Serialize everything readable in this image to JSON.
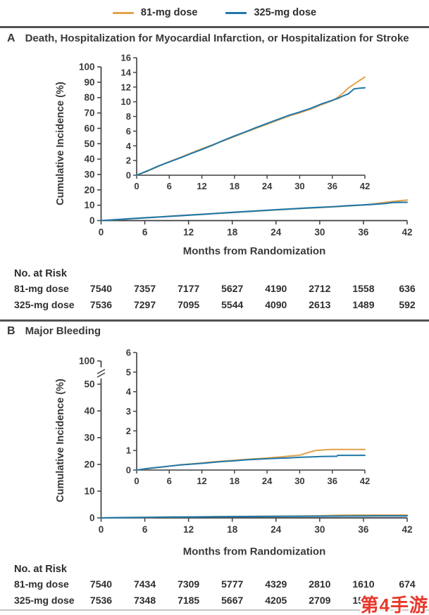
{
  "legend": {
    "items": [
      {
        "label": "81-mg dose",
        "color": "#E2A24A"
      },
      {
        "label": "325-mg dose",
        "color": "#1F77A9"
      }
    ]
  },
  "watermark": {
    "text": "第4手游",
    "color": "#E8392B"
  },
  "panels": [
    {
      "letter": "A",
      "title": "Death, Hospitalization for Myocardial Infarction, or Hospitalization for Stroke",
      "ylabel": "Cumulative Incidence (%)",
      "xlabel": "Months from Randomization",
      "risk": {
        "title": "No. at Risk",
        "rows": [
          {
            "label": "81-mg dose",
            "values": [
              "7540",
              "7357",
              "7177",
              "5627",
              "4190",
              "2712",
              "1558",
              "636"
            ]
          },
          {
            "label": "325-mg dose",
            "values": [
              "7536",
              "7297",
              "7095",
              "5544",
              "4090",
              "2613",
              "1489",
              "592"
            ]
          }
        ]
      }
    },
    {
      "letter": "B",
      "title": "Major Bleeding",
      "ylabel": "Cumulative Incidence (%)",
      "xlabel": "Months from Randomization",
      "risk": {
        "title": "No. at Risk",
        "rows": [
          {
            "label": "81-mg dose",
            "values": [
              "7540",
              "7434",
              "7309",
              "5777",
              "4329",
              "2810",
              "1610",
              "674"
            ]
          },
          {
            "label": "325-mg dose",
            "values": [
              "7536",
              "7348",
              "7185",
              "5667",
              "4205",
              "2709",
              "1559",
              ""
            ]
          }
        ]
      }
    }
  ],
  "chart_data": [
    {
      "type": "line",
      "title": "Death, Hospitalization for Myocardial Infarction, or Hospitalization for Stroke",
      "xlabel": "Months from Randomization",
      "ylabel": "Cumulative Incidence (%)",
      "xlim": [
        0,
        42
      ],
      "x_ticks": [
        0,
        6,
        12,
        18,
        24,
        30,
        36,
        42
      ],
      "main": {
        "ylim": [
          0,
          100
        ],
        "y_ticks": [
          0,
          10,
          20,
          30,
          40,
          50,
          60,
          70,
          80,
          90,
          100
        ],
        "y_break": false
      },
      "inset": {
        "ylim": [
          0,
          16
        ],
        "y_ticks": [
          0,
          2,
          4,
          6,
          8,
          10,
          12,
          14,
          16
        ]
      },
      "legend_position": "top",
      "grid": false,
      "series": [
        {
          "name": "81-mg dose",
          "color": "#E2A24A",
          "x": [
            0,
            2,
            4,
            6,
            8,
            10,
            12,
            14,
            16,
            18,
            20,
            22,
            24,
            26,
            28,
            30,
            32,
            34,
            36,
            37,
            38,
            39,
            40,
            41,
            42
          ],
          "y": [
            0,
            0.55,
            1.2,
            1.85,
            2.4,
            3.0,
            3.6,
            4.15,
            4.7,
            5.25,
            5.85,
            6.4,
            6.95,
            7.5,
            8.05,
            8.5,
            9.0,
            9.6,
            10.15,
            10.6,
            11.2,
            11.9,
            12.4,
            12.9,
            13.35
          ]
        },
        {
          "name": "325-mg dose",
          "color": "#1F77A9",
          "x": [
            0,
            2,
            4,
            6,
            8,
            10,
            12,
            14,
            16,
            18,
            20,
            22,
            24,
            26,
            28,
            30,
            32,
            34,
            36,
            37,
            38,
            39,
            40,
            41,
            42
          ],
          "y": [
            0,
            0.6,
            1.25,
            1.8,
            2.35,
            2.95,
            3.5,
            4.1,
            4.75,
            5.35,
            5.9,
            6.5,
            7.05,
            7.6,
            8.15,
            8.6,
            9.1,
            9.7,
            10.2,
            10.45,
            10.8,
            11.1,
            11.75,
            11.85,
            11.9
          ]
        }
      ]
    },
    {
      "type": "line",
      "title": "Major Bleeding",
      "xlabel": "Months from Randomization",
      "ylabel": "Cumulative Incidence (%)",
      "xlim": [
        0,
        42
      ],
      "x_ticks": [
        0,
        6,
        12,
        18,
        24,
        30,
        36,
        42
      ],
      "main": {
        "ylim": [
          0,
          100
        ],
        "y_ticks": [
          0,
          10,
          20,
          30,
          40,
          50
        ],
        "y_break": true,
        "y_break_upper_label": 100
      },
      "inset": {
        "ylim": [
          0,
          6
        ],
        "y_ticks": [
          0,
          1,
          2,
          3,
          4,
          5,
          6
        ]
      },
      "legend_position": "top",
      "grid": false,
      "series": [
        {
          "name": "81-mg dose",
          "color": "#E2A24A",
          "x": [
            0,
            2,
            4,
            6,
            8,
            10,
            12,
            14,
            16,
            18,
            20,
            22,
            24,
            26,
            28,
            30,
            30.5,
            31,
            31.5,
            32,
            32.5,
            33,
            34,
            35,
            36,
            42
          ],
          "y": [
            0,
            0.07,
            0.13,
            0.2,
            0.27,
            0.31,
            0.36,
            0.42,
            0.46,
            0.5,
            0.54,
            0.58,
            0.61,
            0.66,
            0.71,
            0.76,
            0.8,
            0.85,
            0.89,
            0.93,
            0.97,
            1.0,
            1.02,
            1.04,
            1.05,
            1.05
          ]
        },
        {
          "name": "325-mg dose",
          "color": "#1F77A9",
          "x": [
            0,
            2,
            4,
            6,
            8,
            10,
            12,
            14,
            16,
            18,
            20,
            22,
            24,
            26,
            28,
            30,
            32,
            34,
            36,
            36.8,
            37,
            42
          ],
          "y": [
            0,
            0.08,
            0.14,
            0.2,
            0.26,
            0.3,
            0.34,
            0.39,
            0.44,
            0.47,
            0.52,
            0.55,
            0.58,
            0.6,
            0.62,
            0.65,
            0.67,
            0.69,
            0.7,
            0.7,
            0.75,
            0.75
          ]
        }
      ]
    }
  ]
}
